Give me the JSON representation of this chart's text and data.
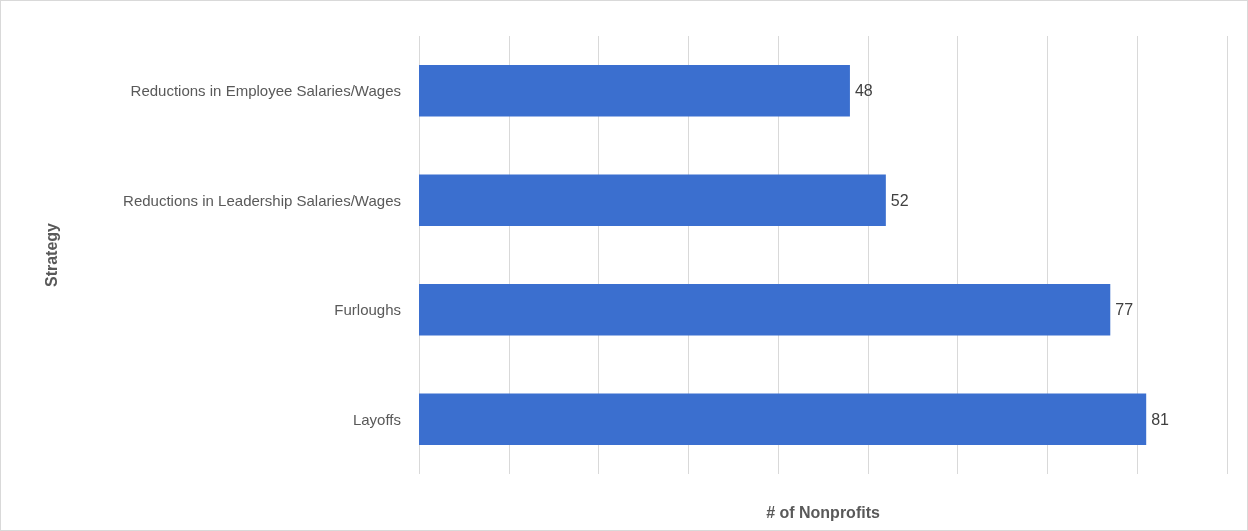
{
  "chart_data": {
    "type": "bar",
    "orientation": "horizontal",
    "xlabel": "# of Nonprofits",
    "ylabel": "Strategy",
    "categories": [
      "Reductions in Employee Salaries/Wages",
      "Reductions in Leadership Salaries/Wages",
      "Furloughs",
      "Layoffs"
    ],
    "values": [
      48,
      52,
      77,
      81
    ],
    "color": "#3b6fcf",
    "xlim": [
      0,
      90
    ],
    "xticks": [
      0,
      10,
      20,
      30,
      40,
      50,
      60,
      70,
      80,
      90
    ],
    "tick_labels": "y",
    "grid": "x",
    "data_labels": true
  }
}
